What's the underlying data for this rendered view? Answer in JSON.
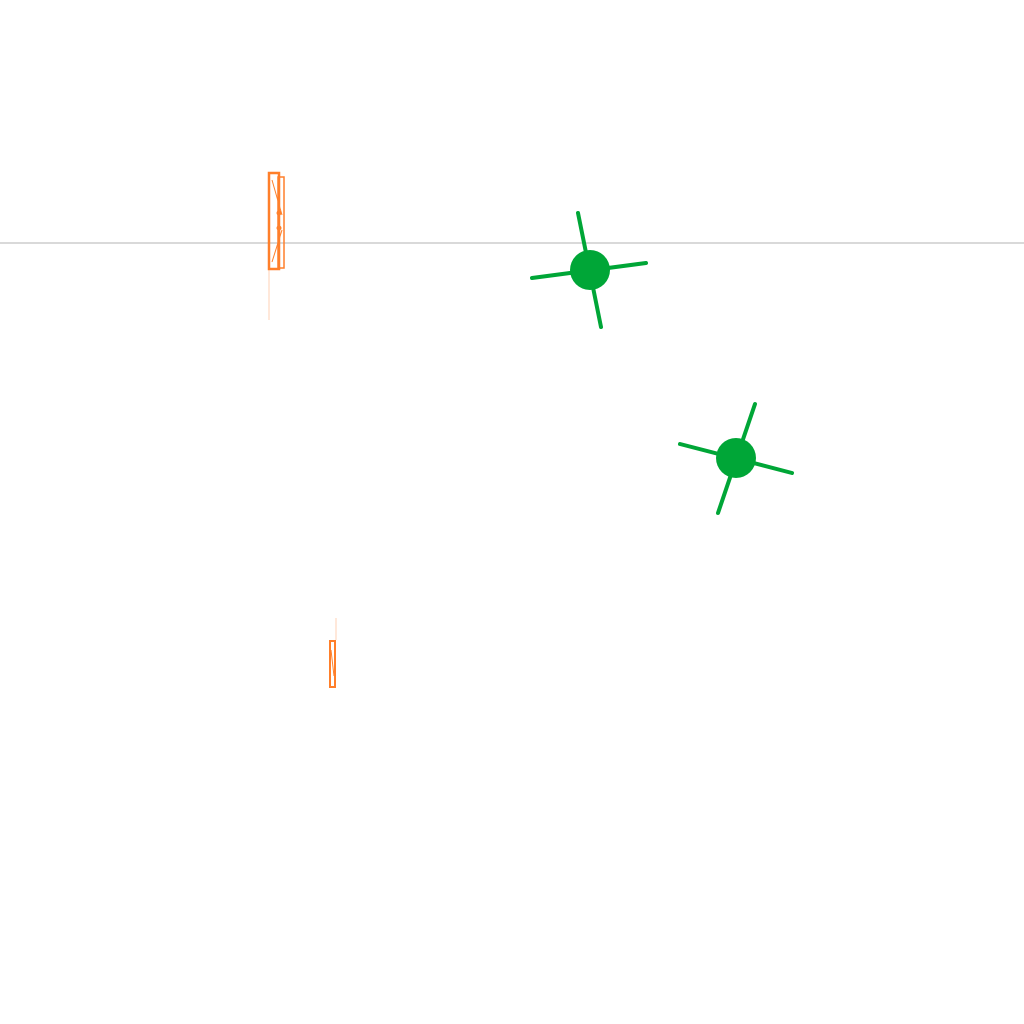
{
  "colors": {
    "background": "#ffffff",
    "horizon_line": "#b3b3b3",
    "orange_object": "#ff7f2a",
    "orange_shadow": "#ffd2b4",
    "green_object": "#00a637"
  },
  "objects": [
    {
      "kind": "horizon-line",
      "icon": "horizon-line-icon"
    },
    {
      "kind": "orange-post",
      "icon": "orange-rectangular-post-icon"
    },
    {
      "kind": "orange-marker",
      "icon": "orange-small-marker-icon"
    },
    {
      "kind": "green-star",
      "icon": "green-four-spoke-star-icon"
    },
    {
      "kind": "green-star",
      "icon": "green-four-spoke-star-icon"
    }
  ]
}
